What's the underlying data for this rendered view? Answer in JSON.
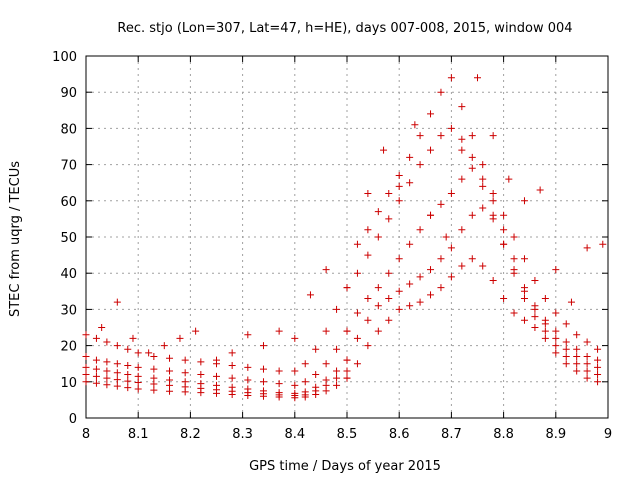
{
  "chart_data": {
    "type": "scatter",
    "title": "Rec. stjo (Lon=307, Lat=47, h=HE), days 007-008, 2015, window 004",
    "xlabel": "GPS time / Days of year 2015",
    "ylabel": "STEC from uqrg / TECUs",
    "xlim": [
      8,
      9
    ],
    "ylim": [
      0,
      100
    ],
    "xticks": [
      8,
      8.1,
      8.2,
      8.3,
      8.4,
      8.5,
      8.6,
      8.7,
      8.8,
      8.9,
      9
    ],
    "xtick_labels": [
      "8",
      "8.1",
      "8.2",
      "8.3",
      "8.4",
      "8.5",
      "8.6",
      "8.7",
      "8.8",
      "8.9",
      "9"
    ],
    "yticks": [
      0,
      10,
      20,
      30,
      40,
      50,
      60,
      70,
      80,
      90,
      100
    ],
    "ytick_labels": [
      "0",
      "10",
      "20",
      "30",
      "40",
      "50",
      "60",
      "70",
      "80",
      "90",
      "100"
    ],
    "grid": true,
    "marker": "plus",
    "series_color": "#cc0000",
    "tracks": [
      {
        "x": [
          8.0,
          8.02,
          8.04,
          8.06,
          8.08,
          8.1,
          8.13,
          8.16,
          8.19,
          8.22,
          8.25,
          8.28,
          8.31,
          8.34,
          8.37,
          8.4,
          8.42,
          8.44,
          8.46,
          8.48,
          8.5
        ],
        "y": [
          10,
          9.6,
          9.2,
          8.8,
          8.4,
          8,
          7.7,
          7.4,
          7.2,
          7,
          6.8,
          6.5,
          6.2,
          6,
          5.8,
          5.6,
          5.8,
          6.5,
          7.5,
          9,
          11
        ]
      },
      {
        "x": [
          8.0,
          8.02,
          8.04,
          8.06,
          8.08,
          8.1,
          8.13,
          8.16,
          8.19,
          8.22,
          8.25,
          8.28,
          8.31,
          8.34,
          8.37,
          8.4,
          8.42,
          8.44,
          8.46,
          8.48,
          8.5
        ],
        "y": [
          12,
          11.5,
          11,
          10.6,
          10.2,
          9.8,
          9.4,
          9,
          8.6,
          8.2,
          7.8,
          7.4,
          7,
          6.7,
          6.4,
          6.2,
          6.4,
          7.5,
          9,
          11,
          13
        ]
      },
      {
        "x": [
          8.0,
          8.02,
          8.04,
          8.06,
          8.08,
          8.1,
          8.13,
          8.16,
          8.19,
          8.22,
          8.25,
          8.28,
          8.31,
          8.34,
          8.37,
          8.4,
          8.42,
          8.44,
          8.46,
          8.48,
          8.5
        ],
        "y": [
          14,
          13.5,
          13,
          12.5,
          12,
          11.5,
          11,
          10.5,
          10,
          9.5,
          9,
          8.5,
          8,
          7.5,
          7,
          6.8,
          7.2,
          8.5,
          10.5,
          13,
          16
        ]
      },
      {
        "x": [
          8.0,
          8.02,
          8.04,
          8.06,
          8.08,
          8.1,
          8.13,
          8.16,
          8.19,
          8.22,
          8.25,
          8.28,
          8.31,
          8.34,
          8.37,
          8.4,
          8.42,
          8.44,
          8.46,
          8.48,
          8.5
        ],
        "y": [
          17,
          16,
          15.5,
          15,
          14.5,
          14,
          13.5,
          13,
          12.5,
          12,
          11.5,
          11,
          10.5,
          10,
          9.5,
          9,
          10,
          12,
          15,
          19,
          24
        ]
      },
      {
        "x": [
          8.0,
          8.02,
          8.04,
          8.06,
          8.08,
          8.1,
          8.13,
          8.16,
          8.19,
          8.22,
          8.25,
          8.28,
          8.31,
          8.34,
          8.37,
          8.4,
          8.42,
          8.44,
          8.46,
          8.48,
          8.5
        ],
        "y": [
          23,
          22,
          21,
          20,
          19,
          18,
          17,
          16.5,
          16,
          15.5,
          15,
          14.5,
          14,
          13.5,
          13,
          13,
          15,
          19,
          24,
          30,
          36
        ]
      },
      {
        "x": [
          8.03,
          8.06,
          8.09,
          8.12,
          8.15,
          8.18,
          8.21
        ],
        "y": [
          25,
          32,
          22,
          18,
          20,
          22,
          24
        ]
      },
      {
        "x": [
          8.25,
          8.28,
          8.31,
          8.34,
          8.37,
          8.4,
          8.43,
          8.46
        ],
        "y": [
          16,
          18,
          23,
          20,
          24,
          22,
          34,
          41
        ]
      },
      {
        "x": [
          8.5,
          8.52,
          8.54,
          8.56,
          8.58,
          8.6,
          8.62,
          8.64,
          8.66,
          8.68,
          8.7,
          8.72,
          8.74,
          8.76,
          8.78,
          8.8,
          8.82,
          8.84,
          8.86,
          8.88,
          8.9,
          8.92,
          8.94,
          8.96,
          8.98
        ],
        "y": [
          11,
          15,
          20,
          24,
          27,
          30,
          31,
          32,
          34,
          36,
          39,
          42,
          44,
          42,
          38,
          33,
          29,
          27,
          25,
          22,
          18,
          15,
          13,
          11,
          10
        ]
      },
      {
        "x": [
          8.5,
          8.52,
          8.54,
          8.56,
          8.58,
          8.6,
          8.62,
          8.64,
          8.66,
          8.68,
          8.7,
          8.72,
          8.74,
          8.76,
          8.78,
          8.8,
          8.82,
          8.84,
          8.86,
          8.88,
          8.9,
          8.92,
          8.94,
          8.96,
          8.98
        ],
        "y": [
          16,
          22,
          27,
          31,
          33,
          35,
          37,
          39,
          41,
          44,
          47,
          52,
          56,
          58,
          55,
          48,
          40,
          33,
          28,
          24,
          20,
          17,
          15,
          13,
          12
        ]
      },
      {
        "x": [
          8.5,
          8.52,
          8.54,
          8.56,
          8.58,
          8.6,
          8.62,
          8.64,
          8.66,
          8.68,
          8.7,
          8.72,
          8.74,
          8.76,
          8.78,
          8.8,
          8.82,
          8.84,
          8.86,
          8.88,
          8.9,
          8.92,
          8.94,
          8.96,
          8.98
        ],
        "y": [
          24,
          29,
          33,
          36,
          40,
          44,
          48,
          52,
          56,
          59,
          62,
          66,
          69,
          66,
          60,
          52,
          44,
          36,
          30,
          26,
          22,
          19,
          17,
          15,
          14
        ]
      },
      {
        "x": [
          8.5,
          8.52,
          8.54,
          8.56,
          8.58,
          8.6,
          8.62,
          8.64,
          8.66,
          8.68,
          8.7,
          8.72,
          8.74,
          8.76,
          8.78,
          8.8,
          8.82,
          8.84,
          8.86,
          8.88,
          8.9,
          8.92,
          8.94,
          8.96,
          8.98
        ],
        "y": [
          36,
          40,
          45,
          50,
          55,
          60,
          65,
          70,
          74,
          78,
          80,
          77,
          72,
          64,
          56,
          48,
          41,
          35,
          31,
          27,
          24,
          21,
          19,
          17,
          16
        ]
      },
      {
        "x": [
          8.52,
          8.54,
          8.56,
          8.58,
          8.6,
          8.62,
          8.64,
          8.66,
          8.68,
          8.7,
          8.72,
          8.74,
          8.76,
          8.78,
          8.8,
          8.82,
          8.84,
          8.86,
          8.88,
          8.9,
          8.92,
          8.94,
          8.96,
          8.98
        ],
        "y": [
          48,
          52,
          57,
          62,
          67,
          72,
          78,
          84,
          90,
          94,
          86,
          78,
          70,
          62,
          56,
          50,
          44,
          38,
          33,
          29,
          26,
          23,
          21,
          19
        ]
      },
      {
        "x": [
          8.54,
          8.57,
          8.6,
          8.63,
          8.66,
          8.69,
          8.72,
          8.75,
          8.78,
          8.81,
          8.84,
          8.87,
          8.9,
          8.93,
          8.96,
          8.99
        ],
        "y": [
          62,
          74,
          64,
          81,
          56,
          50,
          74,
          94,
          78,
          66,
          60,
          63,
          41,
          32,
          47,
          48
        ]
      }
    ]
  }
}
